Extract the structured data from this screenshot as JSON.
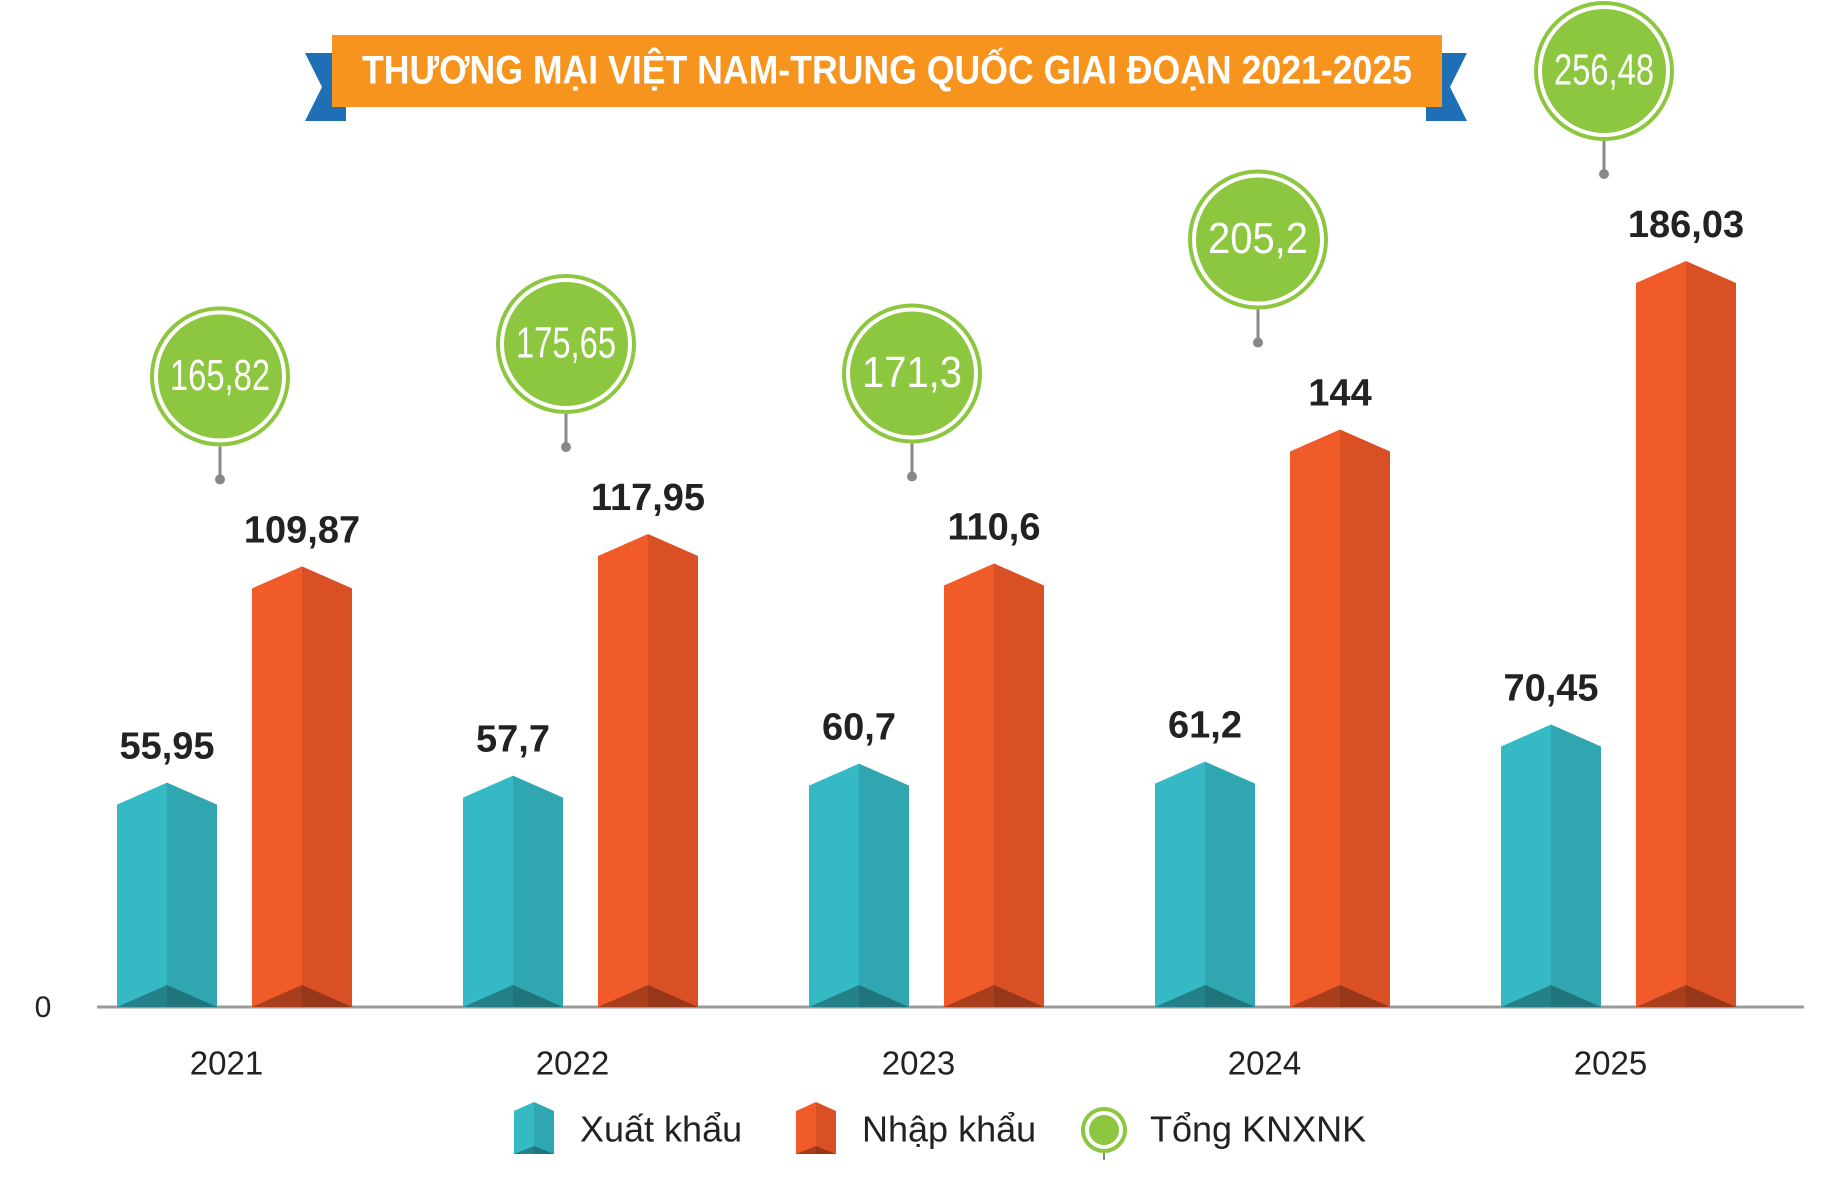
{
  "chart_data": {
    "type": "bar",
    "title": "THƯƠNG MẠI VIỆT NAM-TRUNG QUỐC GIAI ĐOẠN 2021-2025",
    "categories": [
      "2021",
      "2022",
      "2023",
      "2024",
      "2025"
    ],
    "series": [
      {
        "name": "Xuất khẩu",
        "color": "#35b9c4",
        "values": [
          55.95,
          57.7,
          60.7,
          61.2,
          70.45
        ],
        "value_labels": [
          "55,95",
          "57,7",
          "60,7",
          "61,2",
          "70,45"
        ]
      },
      {
        "name": "Nhập khẩu",
        "color": "#f15a29",
        "values": [
          109.87,
          117.95,
          110.6,
          144,
          186.03
        ],
        "value_labels": [
          "109,87",
          "117,95",
          "110,6",
          "144",
          "186,03"
        ]
      },
      {
        "name": "Tổng KNXNK",
        "marker": "circle",
        "color": "#8dc63f",
        "values": [
          165.82,
          175.65,
          171.3,
          205.2,
          256.48
        ],
        "value_labels": [
          "165,82",
          "175,65",
          "171,3",
          "205,2",
          "256,48"
        ]
      }
    ],
    "ylim": [
      0,
      200
    ],
    "yticks": [
      0
    ]
  }
}
